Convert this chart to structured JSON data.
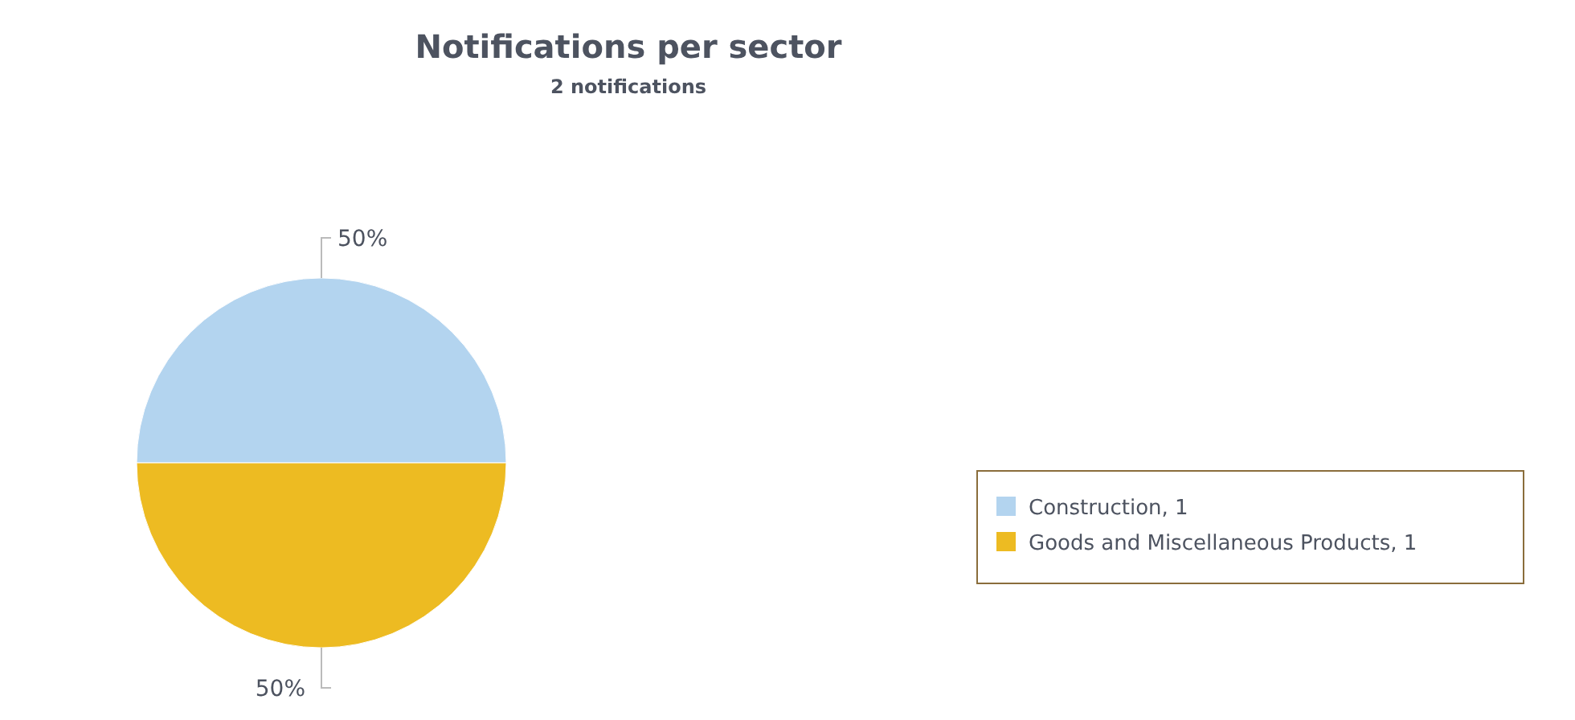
{
  "chart_data": {
    "type": "pie",
    "title": "Notifications per sector",
    "subtitle": "2 notifications",
    "categories": [
      "Construction, 1",
      "Goods and Miscellaneous Products, 1"
    ],
    "values": [
      50,
      50
    ],
    "colors": [
      "#b3d4ef",
      "#edbb22"
    ],
    "value_labels": [
      "50%",
      "50%"
    ],
    "legend": "right"
  }
}
